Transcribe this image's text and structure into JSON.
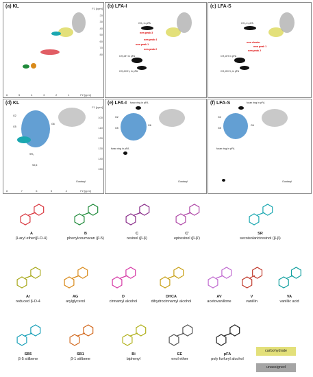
{
  "panels": [
    {
      "id": "a",
      "label": "(a)  KL",
      "annotations": [],
      "yaxis": [
        "20",
        "30",
        "40",
        "50",
        "60",
        "70",
        "80"
      ],
      "xaxis": [
        "6",
        "5",
        "4",
        "3",
        "2",
        "1"
      ],
      "xunit": "F2 [ppm]",
      "yunit": "F1 [ppm]"
    },
    {
      "id": "b",
      "label": "(b)  LFA-I",
      "annotations": [
        "CH₃ in pFA",
        "new peak 3",
        "new peak 4",
        "new peak 1",
        "new peak 2",
        "CH₂OH in pFA",
        "CH₂OCH₂ in pFA"
      ]
    },
    {
      "id": "c",
      "label": "(c)  LFA-S",
      "annotations": [
        "CH₃ in pFA",
        "new cluster",
        "new peak 1",
        "new peak 2",
        "CH₂OH in pFA",
        "CH₂OCH₂ in pFA"
      ]
    },
    {
      "id": "d",
      "label": "(d)  KL",
      "annotations": [
        "G2",
        "G5",
        "G6",
        "SR₂",
        "S2,6",
        "Guaiacyl"
      ],
      "yaxis": [
        "100",
        "110",
        "120",
        "130",
        "140",
        "150"
      ],
      "xaxis": [
        "8",
        "7",
        "6",
        "5",
        "4"
      ],
      "xunit": "F2 [ppm]",
      "yunit": "F1 [ppm]"
    },
    {
      "id": "e",
      "label": "(e)  LFA-I",
      "annotations": [
        "furan ring in pFA",
        "furan ring in pFA",
        "G2",
        "G5",
        "G6",
        "Guaiacyl"
      ]
    },
    {
      "id": "f",
      "label": "(f)  LFA-S",
      "annotations": [
        "furan ring in pFA",
        "furan ring in pFA",
        "G2",
        "G5",
        "G6",
        "Guaiacyl"
      ]
    }
  ],
  "structures": [
    {
      "code": "A",
      "name": "β-aryl ether(β-O-4)",
      "color": "#d9363e"
    },
    {
      "code": "B",
      "name": "phenylcoumaran (β-5)",
      "color": "#1f8a3a"
    },
    {
      "code": "C",
      "name": "resinol (β-β)",
      "color": "#8b2f8b"
    },
    {
      "code": "C'",
      "name": "epiresinol (β-β')",
      "color": "#b04aa8"
    },
    {
      "code": "SR",
      "name": "secoisolariciresinol (β-β)",
      "color": "#1aa7b0"
    },
    {
      "code": "Ar",
      "name": "reduced β-O-4",
      "color": "#a8a81a"
    },
    {
      "code": "AG",
      "name": "arylglycerol",
      "color": "#d98a1a"
    },
    {
      "code": "D",
      "name": "cinnamyl alcohol",
      "color": "#d63aa6"
    },
    {
      "code": "DHCA",
      "name": "dihydrocinnamyl alcohol",
      "color": "#c8a016"
    },
    {
      "code": "AV",
      "name": "acetovanillone",
      "color": "#c06ad0"
    },
    {
      "code": "V",
      "name": "vanillin",
      "color": "#c0392b"
    },
    {
      "code": "VA",
      "name": "vanillic acid",
      "color": "#13a0a0"
    },
    {
      "code": "SB5",
      "name": "β-5 stilbene",
      "color": "#18a0b8"
    },
    {
      "code": "SB1",
      "name": "β-1 stilbene",
      "color": "#d2691e"
    },
    {
      "code": "Bi",
      "name": "biphenyl",
      "color": "#b0b01a"
    },
    {
      "code": "EE",
      "name": "enol ether",
      "color": "#555555"
    },
    {
      "code": "pFA",
      "name": "poly furfuryl alcohol",
      "color": "#222222"
    }
  ],
  "legend": [
    {
      "label": "carbohydrate",
      "color": "#e3e07a"
    },
    {
      "label": "unassigned",
      "color": "#a5a5a5"
    }
  ]
}
